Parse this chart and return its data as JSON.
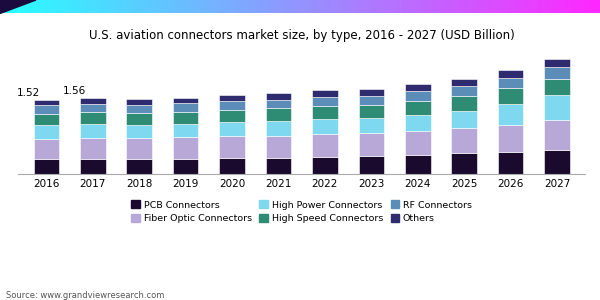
{
  "title": "U.S. aviation connectors market size, by type, 2016 - 2027 (USD Billion)",
  "source": "Source: www.grandviewresearch.com",
  "years": [
    2016,
    2017,
    2018,
    2019,
    2020,
    2021,
    2022,
    2023,
    2024,
    2025,
    2026,
    2027
  ],
  "annotations": {
    "2016": "1.52",
    "2017": "1.56"
  },
  "series": {
    "PCB Connectors": [
      0.3,
      0.31,
      0.3,
      0.31,
      0.32,
      0.33,
      0.35,
      0.37,
      0.39,
      0.42,
      0.46,
      0.5
    ],
    "Fiber Optic Connectors": [
      0.42,
      0.43,
      0.43,
      0.44,
      0.45,
      0.46,
      0.47,
      0.48,
      0.5,
      0.52,
      0.55,
      0.6
    ],
    "High Power Connectors": [
      0.28,
      0.28,
      0.27,
      0.28,
      0.29,
      0.3,
      0.31,
      0.3,
      0.33,
      0.36,
      0.43,
      0.52
    ],
    "High Speed Connectors": [
      0.24,
      0.25,
      0.25,
      0.25,
      0.26,
      0.26,
      0.27,
      0.27,
      0.28,
      0.3,
      0.32,
      0.34
    ],
    "RF Connectors": [
      0.17,
      0.17,
      0.17,
      0.17,
      0.18,
      0.18,
      0.19,
      0.19,
      0.2,
      0.21,
      0.22,
      0.23
    ],
    "Others": [
      0.11,
      0.12,
      0.12,
      0.12,
      0.12,
      0.13,
      0.13,
      0.14,
      0.14,
      0.15,
      0.16,
      0.17
    ]
  },
  "colors": {
    "PCB Connectors": "#1a0a2e",
    "Fiber Optic Connectors": "#b8a8d8",
    "High Power Connectors": "#7dd8f0",
    "High Speed Connectors": "#2e8b74",
    "RF Connectors": "#5b8db8",
    "Others": "#2e2b6e"
  },
  "bar_width": 0.55,
  "ylim": [
    0,
    2.5
  ],
  "figsize": [
    6.0,
    3.0
  ],
  "dpi": 100,
  "background_color": "#ffffff",
  "title_fontsize": 8.5,
  "legend_fontsize": 6.8,
  "tick_fontsize": 7.5,
  "annotation_fontsize": 7.5
}
